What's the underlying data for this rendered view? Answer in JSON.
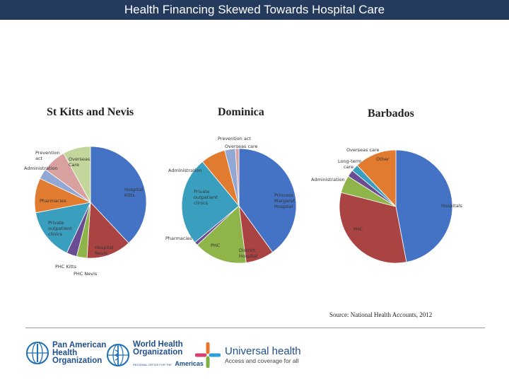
{
  "slide": {
    "title": "Health Financing Skewed Towards Hospital Care",
    "source": "Source: National Health Accounts, 2012"
  },
  "logos": {
    "paho_line1": "Pan American",
    "paho_line2": "Health",
    "paho_line3": "Organization",
    "who_line1": "World Health",
    "who_line2": "Organization",
    "who_line3": "Americas",
    "who_prefix": "REGIONAL OFFICE FOR THE",
    "uh_title": "Universal health",
    "uh_sub": "Access and coverage for all"
  },
  "chart_data": [
    {
      "type": "pie",
      "title": "St Kitts and Nevis",
      "slices": [
        {
          "label": "Hospital Kitts",
          "value": 38,
          "color": "#4472c4"
        },
        {
          "label": "Hospital Nevis",
          "value": 13,
          "color": "#a94442"
        },
        {
          "label": "PHC Kitts",
          "value": 3,
          "color": "#8eb44a"
        },
        {
          "label": "PHC Nevis",
          "value": 3,
          "color": "#6a4c93"
        },
        {
          "label": "Private outpatient clinics",
          "value": 15,
          "color": "#3a9fbe"
        },
        {
          "label": "Pharmacies",
          "value": 10,
          "color": "#e07b30"
        },
        {
          "label": "Administration",
          "value": 3,
          "color": "#91a8d4"
        },
        {
          "label": "Prevention act",
          "value": 7,
          "color": "#d9a0a0"
        },
        {
          "label": "Overseas Care",
          "value": 8,
          "color": "#c3d69b"
        }
      ]
    },
    {
      "type": "pie",
      "title": "Dominica",
      "slices": [
        {
          "label": "Princess Margaret Hospital",
          "value": 40,
          "color": "#4472c4"
        },
        {
          "label": "District Hospital",
          "value": 8,
          "color": "#a94442"
        },
        {
          "label": "PHC",
          "value": 15,
          "color": "#8eb44a"
        },
        {
          "label": "Pharmacies",
          "value": 1,
          "color": "#6a4c93"
        },
        {
          "label": "Private outpatient clinics",
          "value": 25,
          "color": "#3a9fbe"
        },
        {
          "label": "Administration",
          "value": 7,
          "color": "#e07b30"
        },
        {
          "label": "Prevention act",
          "value": 3,
          "color": "#91a8d4"
        },
        {
          "label": "Overseas care",
          "value": 1,
          "color": "#d9a0a0"
        }
      ]
    },
    {
      "type": "pie",
      "title": "Barbados",
      "slices": [
        {
          "label": "Hospitals",
          "value": 47,
          "color": "#4472c4"
        },
        {
          "label": "PHC",
          "value": 32,
          "color": "#a94442"
        },
        {
          "label": "Administration",
          "value": 5,
          "color": "#8eb44a"
        },
        {
          "label": "Long-term care",
          "value": 2,
          "color": "#6a4c93"
        },
        {
          "label": "Overseas care",
          "value": 2,
          "color": "#3a9fbe"
        },
        {
          "label": "Other",
          "value": 12,
          "color": "#e07b30"
        }
      ]
    }
  ]
}
